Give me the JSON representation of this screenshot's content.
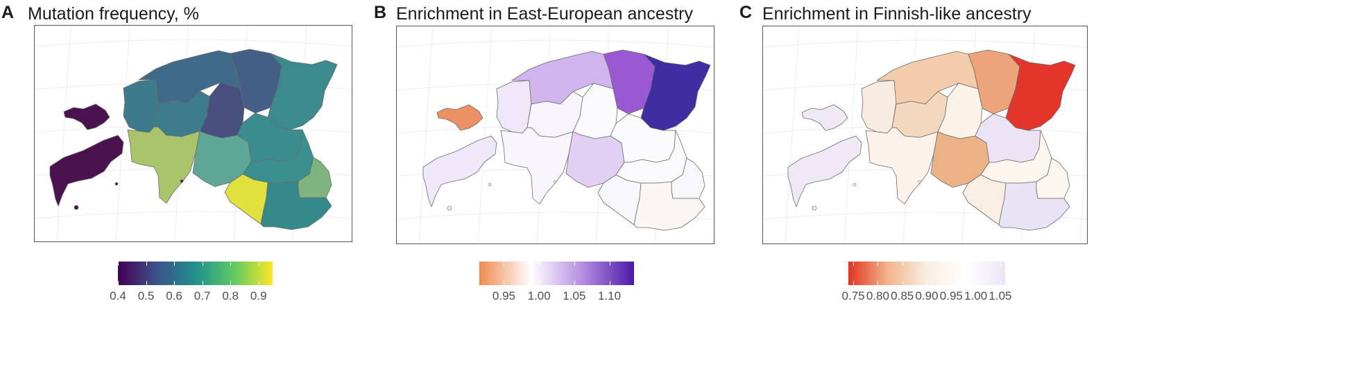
{
  "panels": [
    {
      "letter": "A",
      "title": "Mutation frequency, %",
      "legend": {
        "ticks": [
          "0.4",
          "0.5",
          "0.6",
          "0.7",
          "0.8",
          "0.9"
        ],
        "range": [
          0.4,
          0.95
        ],
        "colors": [
          "#440154",
          "#3b528b",
          "#21908c",
          "#5ec962",
          "#fde725"
        ]
      },
      "region_colors": {
        "saaremaa": "#4b1250",
        "hiiumaa": "#4b1250",
        "harju": "#3f6a8a",
        "ida_viru": "#3a8a8e",
        "laane_viru": "#445f86",
        "rapla": "#3c7c8c",
        "jarva": "#47507e",
        "laane": "#3d7b8c",
        "parnu": "#a9c46a",
        "viljandi": "#5ea796",
        "jogeva": "#3a8c8f",
        "tartu": "#3b8f8f",
        "polva": "#80b47f",
        "valga": "#e0e03e",
        "voru": "#35898b"
      }
    },
    {
      "letter": "B",
      "title": "Enrichment in East-European ancestry",
      "legend": {
        "ticks": [
          "0.95",
          "1.00",
          "1.05",
          "1.10"
        ],
        "range": [
          0.915,
          1.135
        ],
        "colors": [
          "#ef8a4f",
          "#ffffff",
          "#b48ee0",
          "#4b1aa8"
        ]
      },
      "region_colors": {
        "saaremaa": "#efe8f8",
        "hiiumaa": "#ec9163",
        "harju": "#d1b4ee",
        "ida_viru": "#3f2da1",
        "laane_viru": "#9a58d3",
        "rapla": "#f7f5fb",
        "jarva": "#fbfafd",
        "laane": "#efe6f7",
        "parnu": "#f8f6fb",
        "viljandi": "#e1d0f3",
        "jogeva": "#fbfafc",
        "tartu": "#faf9fc",
        "polva": "#f8f7fb",
        "valga": "#f8f7fb",
        "voru": "#faf6f1"
      }
    },
    {
      "letter": "C",
      "title": "Enrichment in Finnish-like ancestry",
      "legend": {
        "ticks": [
          "0.75",
          "0.80",
          "0.85",
          "0.90",
          "0.95",
          "1.00",
          "1.05"
        ],
        "range": [
          0.74,
          1.06
        ],
        "colors": [
          "#e2341f",
          "#f2b48c",
          "#f8eee2",
          "#ffffff",
          "#ece4f6"
        ]
      },
      "region_colors": {
        "saaremaa": "#efe9f6",
        "hiiumaa": "#efe9f6",
        "harju": "#f3cdab",
        "ida_viru": "#e2362a",
        "laane_viru": "#eda47a",
        "rapla": "#f3d8bd",
        "jarva": "#fbf2e8",
        "laane": "#f8ece0",
        "parnu": "#fbf3eb",
        "viljandi": "#ecb287",
        "jogeva": "#ebe4f5",
        "tartu": "#fcf6ef",
        "polva": "#fbf6f0",
        "valga": "#f9eee4",
        "voru": "#e9e3f6"
      }
    }
  ]
}
